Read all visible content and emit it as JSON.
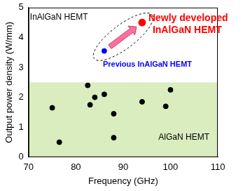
{
  "chart_data": {
    "type": "scatter",
    "x_label": "Frequency (GHz)",
    "y_label": "Output power density (W/mm)",
    "xlim": [
      70,
      110
    ],
    "xticks": [
      70,
      80,
      90,
      100,
      110
    ],
    "ylim": [
      0,
      5
    ],
    "yticks": [
      0,
      1,
      2,
      3,
      4,
      5
    ],
    "grid": false,
    "annotations": [
      "InAlGaN HEMT"
    ],
    "bands": [
      {
        "ymin": 0,
        "ymax": 2.5,
        "color": "#d9edbf"
      }
    ],
    "series": [
      {
        "name": "AlGaN HEMT",
        "color": "#000000",
        "marker": "circle",
        "x": [
          75,
          76.5,
          82.5,
          83,
          84,
          86,
          88,
          88,
          94,
          99,
          100
        ],
        "values": [
          1.65,
          0.5,
          2.4,
          1.75,
          2.0,
          2.1,
          1.45,
          0.65,
          1.85,
          1.7,
          2.25
        ]
      },
      {
        "name": "Previous InAlGaN HEMT",
        "color": "#0000ff",
        "marker": "circle",
        "x": [
          86
        ],
        "values": [
          3.55
        ]
      },
      {
        "name": "Newly developed\nInAlGaN HEMT",
        "color": "#ff0000",
        "marker": "circle",
        "x": [
          94
        ],
        "values": [
          4.5
        ]
      }
    ]
  }
}
